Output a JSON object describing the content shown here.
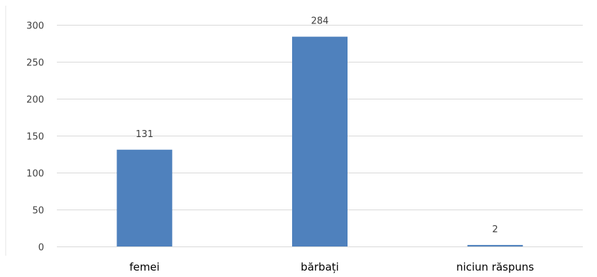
{
  "chart_data": {
    "type": "bar",
    "categories": [
      "femei",
      "bărbați",
      "niciun răspuns"
    ],
    "values": [
      131,
      284,
      2
    ],
    "ylim": [
      0,
      300
    ],
    "yticks": [
      0,
      50,
      100,
      150,
      200,
      250,
      300
    ],
    "grid": true,
    "bar_color": "#4f81bd",
    "title": "",
    "xlabel": "",
    "ylabel": ""
  }
}
